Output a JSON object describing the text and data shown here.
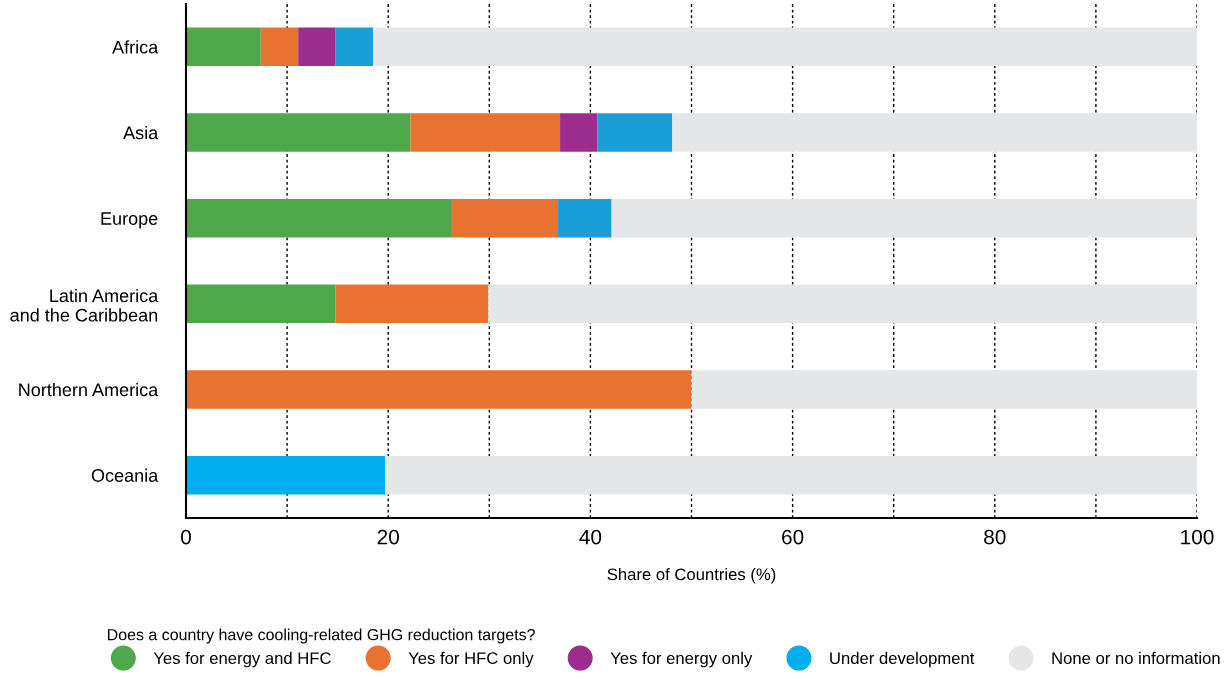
{
  "chart_data": {
    "type": "bar",
    "orientation": "horizontal",
    "stacked": true,
    "categories": [
      "Africa",
      "Asia",
      "Europe",
      "Latin America\nand the Caribbean",
      "Northern America",
      "Oceania"
    ],
    "series": [
      {
        "name": "Yes for energy and HFC",
        "color": "#4fa84a",
        "values": [
          7.4,
          22.2,
          26.3,
          14.8,
          0,
          0
        ]
      },
      {
        "name": "Yes for HFC only",
        "color": "#e87230",
        "values": [
          3.7,
          14.8,
          10.5,
          15.1,
          50,
          0
        ]
      },
      {
        "name": "Yes for energy only",
        "color": "#9c2c8d",
        "values": [
          3.7,
          3.7,
          0,
          0,
          0,
          0
        ]
      },
      {
        "name": "Under development",
        "color": "#00aeef",
        "colors": [
          "#1a9ed8",
          "#1a9ed8",
          "#1a9ed8",
          "#1a9ed8",
          "#1a9ed8",
          "#00aeef"
        ],
        "values": [
          3.7,
          7.4,
          5.3,
          0,
          0,
          19.7
        ]
      },
      {
        "name": "None or no information",
        "color": "#e5e6e8",
        "values": [
          81.5,
          51.9,
          57.9,
          70.1,
          50,
          80.3
        ]
      }
    ],
    "xlabel": "Share of Countries (%)",
    "legend_title": "Does a country have cooling-related GHG reduction targets?",
    "legend": "bottom",
    "xlim": [
      0,
      100
    ],
    "xticks": [
      0,
      {
        "value": 10,
        "label": null
      },
      20,
      {
        "value": 30,
        "label": null
      },
      40,
      {
        "value": 50,
        "label": null
      },
      60,
      {
        "value": 70,
        "label": null
      },
      80,
      {
        "value": 90,
        "label": null
      },
      100
    ],
    "grid": "x"
  }
}
